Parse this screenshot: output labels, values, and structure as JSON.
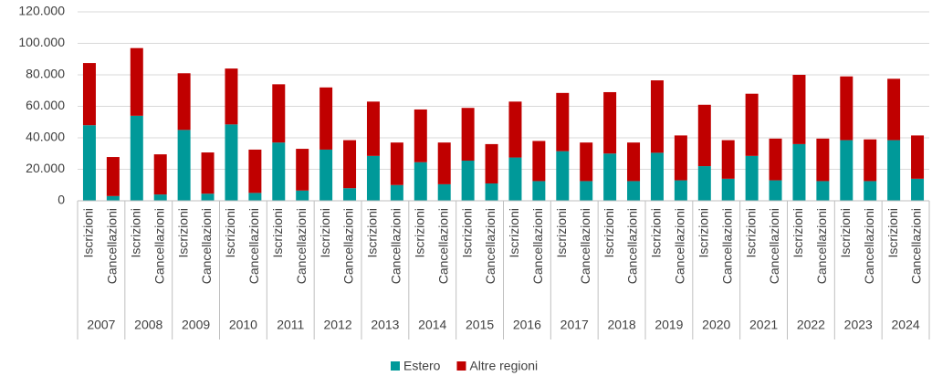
{
  "chart_data": {
    "type": "bar",
    "stacked": true,
    "categories": [
      "Iscrizioni",
      "Cancellazioni",
      "Iscrizioni",
      "Cancellazioni",
      "Iscrizioni",
      "Cancellazioni",
      "Iscrizioni",
      "Cancellazioni",
      "Iscrizioni",
      "Cancellazioni",
      "Iscrizioni",
      "Cancellazioni",
      "Iscrizioni",
      "Cancellazioni",
      "Iscrizioni",
      "Cancellazioni",
      "Iscrizioni",
      "Cancellazioni",
      "Iscrizioni",
      "Cancellazioni",
      "Iscrizioni",
      "Cancellazioni",
      "Iscrizioni",
      "Cancellazioni",
      "Iscrizioni",
      "Cancellazioni",
      "Iscrizioni",
      "Cancellazioni",
      "Iscrizioni",
      "Cancellazioni",
      "Iscrizioni",
      "Cancellazioni",
      "Iscrizioni",
      "Cancellazioni",
      "Iscrizioni",
      "Cancellazioni"
    ],
    "groups": [
      "2007",
      "2008",
      "2009",
      "2010",
      "2011",
      "2012",
      "2013",
      "2014",
      "2015",
      "2016",
      "2017",
      "2018",
      "2019",
      "2020",
      "2021",
      "2022",
      "2023",
      "2024"
    ],
    "series": [
      {
        "name": "Estero",
        "color": "#009999",
        "values": [
          48000,
          3000,
          54000,
          4000,
          45000,
          4500,
          48500,
          5000,
          37000,
          6500,
          32500,
          8000,
          28500,
          10000,
          24500,
          10500,
          25500,
          11000,
          27500,
          12500,
          31500,
          12500,
          30000,
          12500,
          30500,
          13000,
          22000,
          14000,
          28500,
          13000,
          36000,
          12500,
          38500,
          12500,
          38500,
          14000
        ]
      },
      {
        "name": "Altre regioni",
        "color": "#c00000",
        "values": [
          39500,
          24800,
          43000,
          25500,
          36000,
          26200,
          35500,
          27500,
          37000,
          26500,
          39500,
          30500,
          34500,
          27000,
          33500,
          26500,
          33500,
          25000,
          35500,
          25500,
          37000,
          24500,
          39000,
          24500,
          46000,
          28500,
          39000,
          24500,
          39500,
          26500,
          44000,
          27000,
          40500,
          26500,
          39000,
          27500
        ]
      }
    ],
    "ylim": [
      0,
      120000
    ],
    "yticks": [
      0,
      {
        "value": 20000,
        "label": "20.000"
      },
      {
        "value": 40000,
        "label": "40.000"
      },
      {
        "value": 60000,
        "label": "60.000"
      },
      {
        "value": 80000,
        "label": "80.000"
      },
      {
        "value": 100000,
        "label": "100.000"
      },
      {
        "value": 120000,
        "label": "120.000"
      }
    ],
    "grid": true,
    "legend": "bottom"
  }
}
